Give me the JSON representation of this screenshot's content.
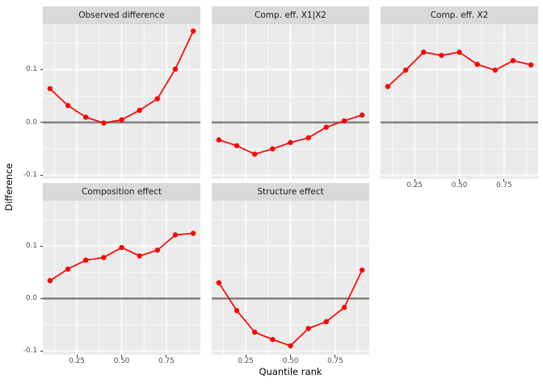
{
  "chart_data": {
    "type": "line",
    "x": [
      0.1,
      0.2,
      0.3,
      0.4,
      0.5,
      0.6,
      0.7,
      0.8,
      0.9
    ],
    "facets": [
      {
        "title": "Observed difference",
        "values": [
          0.064,
          0.032,
          0.01,
          -0.001,
          0.005,
          0.023,
          0.045,
          0.101,
          0.173
        ]
      },
      {
        "title": "Comp. eff. X1|X2",
        "values": [
          -0.033,
          -0.044,
          -0.06,
          -0.05,
          -0.038,
          -0.029,
          -0.009,
          0.003,
          0.014
        ]
      },
      {
        "title": "Comp. eff. X2",
        "values": [
          0.068,
          0.099,
          0.133,
          0.127,
          0.133,
          0.11,
          0.099,
          0.117,
          0.109
        ]
      },
      {
        "title": "Composition effect",
        "values": [
          0.034,
          0.056,
          0.073,
          0.078,
          0.097,
          0.081,
          0.092,
          0.121,
          0.124
        ]
      },
      {
        "title": "Structure effect",
        "values": [
          0.03,
          -0.023,
          -0.064,
          -0.078,
          -0.09,
          -0.057,
          -0.044,
          -0.017,
          0.054
        ]
      }
    ],
    "xlabel": "Quantile rank",
    "ylabel": "Difference",
    "x_ticks": [
      0.25,
      0.5,
      0.75
    ],
    "x_tick_labels": [
      "0.25",
      "0.50",
      "0.75"
    ],
    "y_ticks": [
      0.1,
      0,
      -0.1
    ],
    "y_tick_labels": [
      "0.1",
      "0.0",
      "-0.1"
    ],
    "x_minor": [
      0.125,
      0.375,
      0.625,
      0.875
    ],
    "y_minor": [
      0.15,
      0.05,
      -0.05
    ],
    "x_domain": [
      0.06,
      0.94
    ],
    "y_domain": [
      -0.107,
      0.186
    ],
    "ref_line_y": 0,
    "grid": "on",
    "legend": "none"
  },
  "style": {
    "panel_bg": "#EBEBEB",
    "strip_bg": "#D9D9D9",
    "grid_color": "#FFFFFF",
    "series_color": "#FF0000",
    "ref_line_color": "#808080",
    "tick_label_color": "#4D4D4D",
    "text_color": "#000000"
  }
}
